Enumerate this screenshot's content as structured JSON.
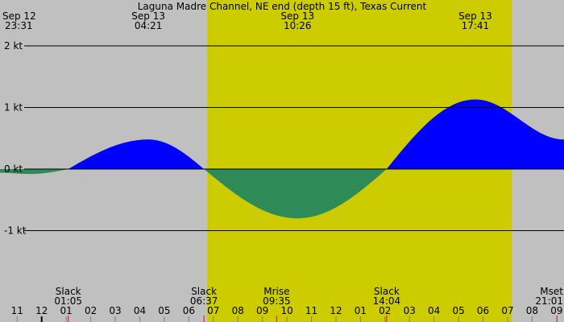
{
  "chart_data": {
    "type": "area",
    "title": "Laguna Madre Channel, NE end (depth 15 ft), Texas Current",
    "ylim": [
      -2.6,
      2.2
    ],
    "xlim_hours": [
      -1.7,
      21.3
    ],
    "colors": {
      "background": "#c0c0c0",
      "daylight": "#cccc00",
      "flood": "#0000ff",
      "ebb": "#2e8b57",
      "gridline": "#000000",
      "tick_marker": "#ff0000",
      "midnight_marker": "#000000"
    },
    "daylight_hours": [
      6.75,
      19.17
    ],
    "yticks": [
      {
        "value": 2,
        "label": "2 kt"
      },
      {
        "value": 1,
        "label": "1 kt"
      },
      {
        "value": 0,
        "label": "0 kt"
      },
      {
        "value": -1,
        "label": "-1 kt"
      }
    ],
    "top_labels": [
      {
        "date": "Sep 12",
        "time": "23:31",
        "hour": -0.483,
        "anchor": "start"
      },
      {
        "date": "Sep 13",
        "time": "04:21",
        "hour": 4.35,
        "anchor": "middle"
      },
      {
        "date": "Sep 13",
        "time": "10:26",
        "hour": 10.433,
        "anchor": "middle"
      },
      {
        "date": "Sep 13",
        "time": "17:41",
        "hour": 17.683,
        "anchor": "middle"
      }
    ],
    "events": [
      {
        "name": "Slack",
        "time": "01:05",
        "hour": 1.083,
        "anchor": "middle"
      },
      {
        "name": "Slack",
        "time": "06:37",
        "hour": 6.617,
        "anchor": "middle"
      },
      {
        "name": "Mrise",
        "time": "09:35",
        "hour": 9.583,
        "anchor": "middle"
      },
      {
        "name": "Slack",
        "time": "14:04",
        "hour": 14.067,
        "anchor": "middle"
      },
      {
        "name": "Mset",
        "time": "21:01",
        "hour": 21.017,
        "anchor": "end"
      }
    ],
    "hour_ticks": [
      {
        "label": "11",
        "hour": -1
      },
      {
        "label": "12",
        "hour": 0
      },
      {
        "label": "01",
        "hour": 1
      },
      {
        "label": "02",
        "hour": 2
      },
      {
        "label": "03",
        "hour": 3
      },
      {
        "label": "04",
        "hour": 4
      },
      {
        "label": "05",
        "hour": 5
      },
      {
        "label": "06",
        "hour": 6
      },
      {
        "label": "07",
        "hour": 7
      },
      {
        "label": "08",
        "hour": 8
      },
      {
        "label": "09",
        "hour": 9
      },
      {
        "label": "10",
        "hour": 10
      },
      {
        "label": "11",
        "hour": 11
      },
      {
        "label": "12",
        "hour": 12
      },
      {
        "label": "01",
        "hour": 13
      },
      {
        "label": "02",
        "hour": 14
      },
      {
        "label": "03",
        "hour": 15
      },
      {
        "label": "04",
        "hour": 16
      },
      {
        "label": "05",
        "hour": 17
      },
      {
        "label": "06",
        "hour": 18
      },
      {
        "label": "07",
        "hour": 19
      },
      {
        "label": "08",
        "hour": 20
      },
      {
        "label": "09",
        "hour": 21
      }
    ],
    "series": [
      {
        "points": [
          {
            "x": -1.7,
            "y": -0.06
          },
          {
            "x": -0.483,
            "y": -0.08
          },
          {
            "x": 1.083,
            "y": 0
          },
          {
            "x": 4.35,
            "y": 0.48
          },
          {
            "x": 6.617,
            "y": 0
          },
          {
            "x": 10.433,
            "y": -0.8
          },
          {
            "x": 14.067,
            "y": 0
          },
          {
            "x": 17.683,
            "y": 1.13
          },
          {
            "x": 21.3,
            "y": 0.48
          }
        ]
      }
    ]
  }
}
